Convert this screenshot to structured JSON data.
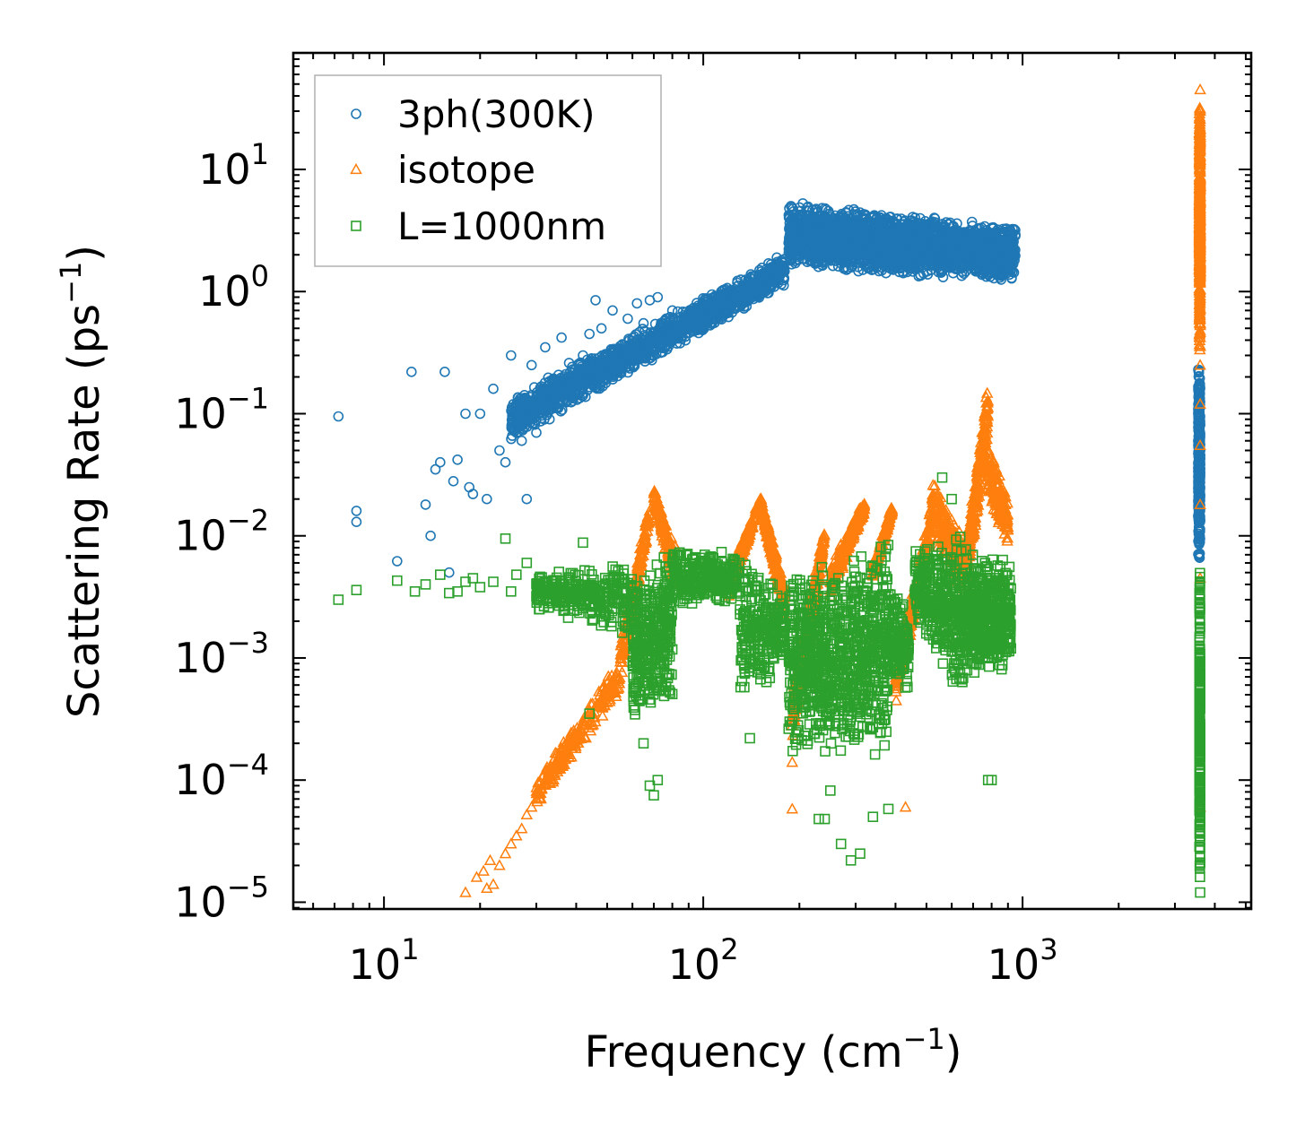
{
  "chart_data": {
    "type": "scatter",
    "title": "",
    "xlabel": "Frequency (cm",
    "xlabel_sup": "−1",
    "xlabel_end": ")",
    "ylabel": "Scattering Rate (ps",
    "ylabel_sup": "−1",
    "ylabel_end": ")",
    "xscale": "log",
    "yscale": "log",
    "xlim": [
      5.2,
      5200
    ],
    "ylim": [
      8.8e-06,
      90
    ],
    "x_ticks": [
      {
        "value": 10,
        "base": "10",
        "exp": "1"
      },
      {
        "value": 100,
        "base": "10",
        "exp": "2"
      },
      {
        "value": 1000,
        "base": "10",
        "exp": "3"
      }
    ],
    "y_ticks": [
      {
        "value": 1e-05,
        "base": "10",
        "exp": "−5"
      },
      {
        "value": 0.0001,
        "base": "10",
        "exp": "−4"
      },
      {
        "value": 0.001,
        "base": "10",
        "exp": "−3"
      },
      {
        "value": 0.01,
        "base": "10",
        "exp": "−2"
      },
      {
        "value": 0.1,
        "base": "10",
        "exp": "−1"
      },
      {
        "value": 1,
        "base": "10",
        "exp": "0"
      },
      {
        "value": 10,
        "base": "10",
        "exp": "1"
      }
    ],
    "legend_position": "top-left",
    "series": [
      {
        "name": "3ph(300K)",
        "marker": "circle",
        "color": "#1f77b4",
        "points": [
          [
            7.2,
            0.095
          ],
          [
            8.2,
            0.016
          ],
          [
            8.2,
            0.013
          ],
          [
            11,
            0.0062
          ],
          [
            12.2,
            0.22
          ],
          [
            13.5,
            0.018
          ],
          [
            14,
            0.01
          ],
          [
            14.5,
            0.035
          ],
          [
            15,
            0.04
          ],
          [
            15.5,
            0.22
          ],
          [
            16,
            0.005
          ],
          [
            16.5,
            0.028
          ],
          [
            17,
            0.042
          ],
          [
            18,
            0.1
          ],
          [
            18.5,
            0.025
          ],
          [
            19,
            0.022
          ],
          [
            20,
            0.1
          ],
          [
            21,
            0.02
          ],
          [
            22,
            0.16
          ],
          [
            23,
            0.05
          ],
          [
            24,
            0.04
          ],
          [
            25,
            0.3
          ],
          [
            26,
            0.12
          ],
          [
            27,
            0.06
          ],
          [
            28,
            0.02
          ],
          [
            29,
            0.25
          ],
          [
            30,
            0.07
          ],
          [
            31,
            0.15
          ],
          [
            32,
            0.35
          ],
          [
            33,
            0.09
          ],
          [
            34,
            0.18
          ],
          [
            36,
            0.42
          ],
          [
            38,
            0.26
          ],
          [
            40,
            0.15
          ],
          [
            42,
            0.3
          ],
          [
            44,
            0.45
          ],
          [
            46,
            0.85
          ],
          [
            48,
            0.5
          ],
          [
            52,
            0.7
          ],
          [
            55,
            0.22
          ],
          [
            58,
            0.6
          ],
          [
            62,
            0.8
          ],
          [
            65,
            0.55
          ],
          [
            68,
            0.85
          ],
          [
            72,
            0.9
          ],
          [
            80,
            0.7
          ],
          [
            90,
            0.55
          ],
          [
            100,
            0.6
          ],
          [
            110,
            0.7
          ],
          [
            120,
            0.9
          ],
          [
            130,
            1.0
          ],
          [
            140,
            1.3
          ],
          [
            150,
            1.5
          ],
          [
            160,
            1.7
          ],
          [
            170,
            1.9
          ]
        ],
        "bands": [
          {
            "x": [
              25,
              180
            ],
            "y0": [
              0.06,
              1.1
            ],
            "y1": [
              0.14,
              2.0
            ],
            "n": 1600
          },
          {
            "x": [
              185,
              950
            ],
            "y0": [
              1.5,
              1.2
            ],
            "y1": [
              5.5,
              3.5
            ],
            "n": 2600
          },
          {
            "x": [
              3550,
              3600
            ],
            "y0": [
              0.006,
              0.006
            ],
            "y1": [
              0.28,
              0.28
            ],
            "n": 400
          }
        ]
      },
      {
        "name": "isotope",
        "marker": "triangle",
        "color": "#ff7f0e",
        "points": [
          [
            18,
            1.2e-05
          ],
          [
            19.5,
            1.6e-05
          ],
          [
            20.5,
            1.8e-05
          ],
          [
            21,
            1.3e-05
          ],
          [
            21.5,
            2.2e-05
          ],
          [
            22,
            1.4e-05
          ],
          [
            23,
            2e-05
          ],
          [
            24,
            2.5e-05
          ],
          [
            25,
            3e-05
          ],
          [
            26,
            3.5e-05
          ],
          [
            27,
            4e-05
          ],
          [
            28,
            5.2e-05
          ],
          [
            29,
            6e-05
          ],
          [
            30,
            7e-05
          ],
          [
            32,
            0.0001
          ],
          [
            35,
            0.00015
          ],
          [
            38,
            0.0002
          ],
          [
            42,
            0.0003
          ],
          [
            45,
            0.00035
          ],
          [
            190,
            5.8e-05
          ],
          [
            190,
            0.00014
          ],
          [
            430,
            6e-05
          ],
          [
            3600,
            30
          ],
          [
            3600,
            20
          ],
          [
            3600,
            45
          ],
          [
            3600,
            0.25
          ],
          [
            3600,
            0.12
          ],
          [
            3600,
            0.055
          ],
          [
            3600,
            0.018
          ],
          [
            3600,
            0.0045
          ],
          [
            3600,
            6e-05
          ]
        ],
        "bands": [
          {
            "x": [
              30,
              55
            ],
            "y0": [
              6e-05,
              0.0005
            ],
            "y1": [
              0.0001,
              0.001
            ],
            "n": 250
          },
          {
            "x": [
              55,
              68
            ],
            "y0": [
              0.0006,
              0.012
            ],
            "y1": [
              0.0015,
              0.02
            ],
            "n": 200
          },
          {
            "x": [
              70,
              82
            ],
            "y0": [
              0.02,
              0.003
            ],
            "y1": [
              0.025,
              0.008
            ],
            "n": 150
          },
          {
            "x": [
              120,
              152
            ],
            "y0": [
              0.003,
              0.018
            ],
            "y1": [
              0.005,
              0.022
            ],
            "n": 200
          },
          {
            "x": [
              152,
              180
            ],
            "y0": [
              0.015,
              0.002
            ],
            "y1": [
              0.02,
              0.004
            ],
            "n": 200
          },
          {
            "x": [
              190,
              240
            ],
            "y0": [
              0.0002,
              0.008
            ],
            "y1": [
              0.0005,
              0.013
            ],
            "n": 250
          },
          {
            "x": [
              250,
              320
            ],
            "y0": [
              0.003,
              0.015
            ],
            "y1": [
              0.006,
              0.02
            ],
            "n": 250
          },
          {
            "x": [
              340,
              390
            ],
            "y0": [
              0.004,
              0.015
            ],
            "y1": [
              0.006,
              0.018
            ],
            "n": 150
          },
          {
            "x": [
              400,
              520
            ],
            "y0": [
              0.0004,
              0.01
            ],
            "y1": [
              0.0008,
              0.02
            ],
            "n": 250
          },
          {
            "x": [
              520,
              660
            ],
            "y0": [
              0.01,
              0.003
            ],
            "y1": [
              0.03,
              0.01
            ],
            "n": 200
          },
          {
            "x": [
              670,
              780
            ],
            "y0": [
              0.004,
              0.06
            ],
            "y1": [
              0.01,
              0.2
            ],
            "n": 250
          },
          {
            "x": [
              780,
              900
            ],
            "y0": [
              0.02,
              0.008
            ],
            "y1": [
              0.06,
              0.02
            ],
            "n": 200
          },
          {
            "x": [
              3580,
              3600
            ],
            "y0": [
              0.3,
              0.3
            ],
            "y1": [
              45,
              45
            ],
            "n": 450
          }
        ]
      },
      {
        "name": "L=1000nm",
        "marker": "square",
        "color": "#2ca02c",
        "points": [
          [
            7.2,
            0.003
          ],
          [
            8.2,
            0.0036
          ],
          [
            11,
            0.0043
          ],
          [
            12.5,
            0.0035
          ],
          [
            13.5,
            0.004
          ],
          [
            15,
            0.0048
          ],
          [
            16,
            0.0034
          ],
          [
            17,
            0.0035
          ],
          [
            18,
            0.0042
          ],
          [
            19,
            0.0045
          ],
          [
            20,
            0.0038
          ],
          [
            22,
            0.0042
          ],
          [
            24,
            0.0095
          ],
          [
            25,
            0.0035
          ],
          [
            26,
            0.0048
          ],
          [
            28,
            0.006
          ],
          [
            30,
            0.0032
          ],
          [
            32,
            0.0042
          ],
          [
            35,
            0.0038
          ],
          [
            38,
            0.0035
          ],
          [
            42,
            0.0088
          ],
          [
            44,
            0.00035
          ],
          [
            65,
            0.0002
          ],
          [
            68,
            9e-05
          ],
          [
            70,
            7.5e-05
          ],
          [
            72,
            0.0001
          ],
          [
            140,
            0.00022
          ],
          [
            230,
            4.8e-05
          ],
          [
            240,
            4.8e-05
          ],
          [
            250,
            8.2e-05
          ],
          [
            270,
            3e-05
          ],
          [
            290,
            2.2e-05
          ],
          [
            310,
            2.5e-05
          ],
          [
            340,
            5e-05
          ],
          [
            380,
            5.8e-05
          ],
          [
            560,
            0.03
          ],
          [
            600,
            0.02
          ],
          [
            780,
            0.0001
          ],
          [
            800,
            0.0001
          ],
          [
            3600,
            1.2e-05
          ],
          [
            3600,
            2.1e-05
          ],
          [
            3600,
            2.8e-05
          ],
          [
            3600,
            5e-05
          ]
        ],
        "bands": [
          {
            "x": [
              30,
              60
            ],
            "y0": [
              0.0025,
              0.0015
            ],
            "y1": [
              0.005,
              0.006
            ],
            "n": 300
          },
          {
            "x": [
              60,
              80
            ],
            "y0": [
              0.0003,
              0.0004
            ],
            "y1": [
              0.004,
              0.009
            ],
            "n": 350
          },
          {
            "x": [
              80,
              130
            ],
            "y0": [
              0.0025,
              0.003
            ],
            "y1": [
              0.008,
              0.0075
            ],
            "n": 300
          },
          {
            "x": [
              130,
              180
            ],
            "y0": [
              0.0004,
              0.0008
            ],
            "y1": [
              0.0065,
              0.004
            ],
            "n": 250
          },
          {
            "x": [
              185,
              380
            ],
            "y0": [
              0.00015,
              0.00015
            ],
            "y1": [
              0.005,
              0.01
            ],
            "n": 900
          },
          {
            "x": [
              380,
              440
            ],
            "y0": [
              0.0008,
              0.0005
            ],
            "y1": [
              0.004,
              0.0025
            ],
            "n": 150
          },
          {
            "x": [
              460,
              650
            ],
            "y0": [
              0.002,
              0.0004
            ],
            "y1": [
              0.008,
              0.012
            ],
            "n": 350
          },
          {
            "x": [
              650,
              920
            ],
            "y0": [
              0.0006,
              0.0008
            ],
            "y1": [
              0.009,
              0.006
            ],
            "n": 500
          },
          {
            "x": [
              3580,
              3600
            ],
            "y0": [
              1.2e-05,
              1.2e-05
            ],
            "y1": [
              0.006,
              0.006
            ],
            "n": 300
          }
        ]
      }
    ]
  }
}
